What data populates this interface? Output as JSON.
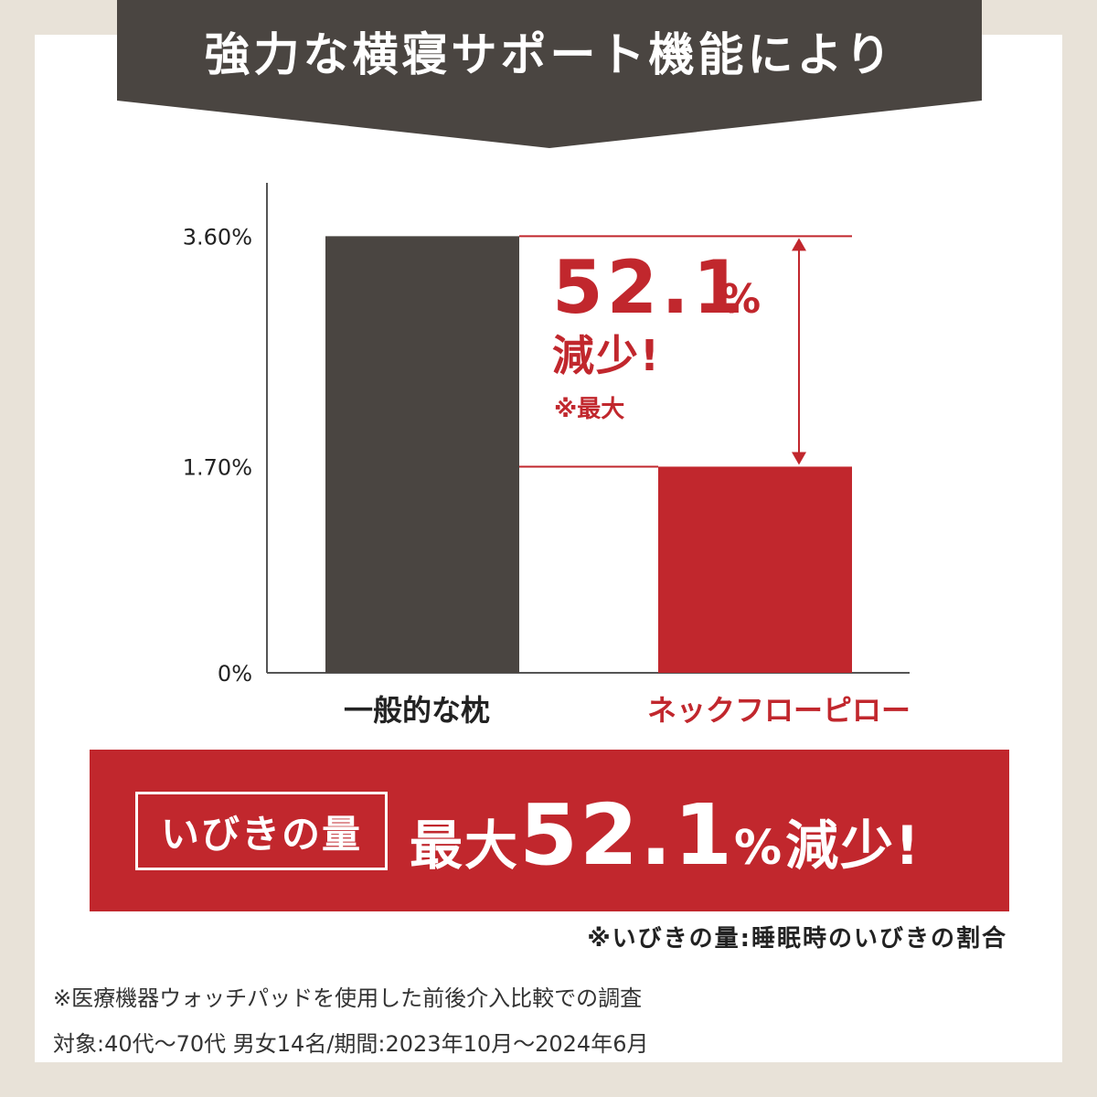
{
  "banner": {
    "title": "強力な横寝サポート機能により",
    "color": "#4a4541"
  },
  "chart_data": {
    "type": "bar",
    "categories": [
      "一般的な枕",
      "ネックフローピロー"
    ],
    "values": [
      3.6,
      1.7
    ],
    "unit": "%",
    "ytick_labels": [
      "0%",
      "1.70%",
      "3.60%"
    ],
    "ytick_values": [
      0,
      1.7,
      3.6
    ],
    "ylim": [
      0,
      4.04
    ],
    "colors": [
      "#4a4541",
      "#c1272d"
    ],
    "category_colors": [
      "#222222",
      "#c1272d"
    ],
    "annotation": {
      "value": "52.1",
      "unit": "%",
      "line2": "減少!",
      "note": "※最大"
    },
    "grid": false,
    "legend": "none"
  },
  "result": {
    "label": "いびきの量",
    "prefix": "最大",
    "number": "52.1",
    "unit": "%",
    "suffix": "減少!"
  },
  "definition_note": "※いびきの量:睡眠時のいびきの割合",
  "footnote": {
    "line1": "※医療機器ウォッチパッドを使用した前後介入比較での調査",
    "line2": "対象:40代〜70代 男女14名/期間:2023年10月〜2024年6月"
  },
  "colors": {
    "accent": "#c1272d",
    "dark": "#4a4541",
    "frame": "#e8e2d8"
  }
}
